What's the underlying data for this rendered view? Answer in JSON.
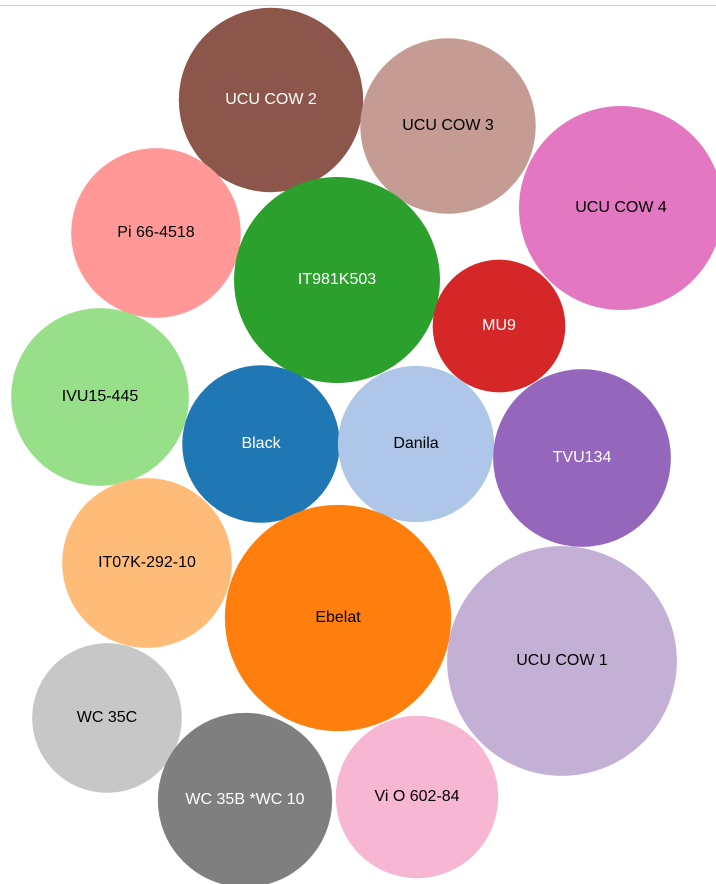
{
  "chart_data": {
    "type": "bubble",
    "categories": [
      "UCU COW 2",
      "UCU COW 3",
      "UCU COW 4",
      "Pi 66-4518",
      "IT981K503",
      "MU9",
      "IVU15-445",
      "Black",
      "Danila",
      "TVU134",
      "IT07K-292-10",
      "Ebelat",
      "UCU COW 1",
      "WC 35C",
      "WC 35B *WC 10",
      "Vi O 602-84"
    ],
    "values": [
      85,
      77,
      104,
      72,
      106,
      44,
      79,
      62,
      61,
      79,
      72,
      128,
      132,
      56,
      76,
      66
    ],
    "colors": [
      "#8c564b",
      "#c49c94",
      "#e377c2",
      "#ff9896",
      "#2ca02c",
      "#d62728",
      "#98df8a",
      "#1f77b4",
      "#aec7e8",
      "#9467bd",
      "#ffbb78",
      "#ff7f0e",
      "#c5b0d5",
      "#c7c7c7",
      "#7f7f7f",
      "#f7b6d2"
    ]
  }
}
